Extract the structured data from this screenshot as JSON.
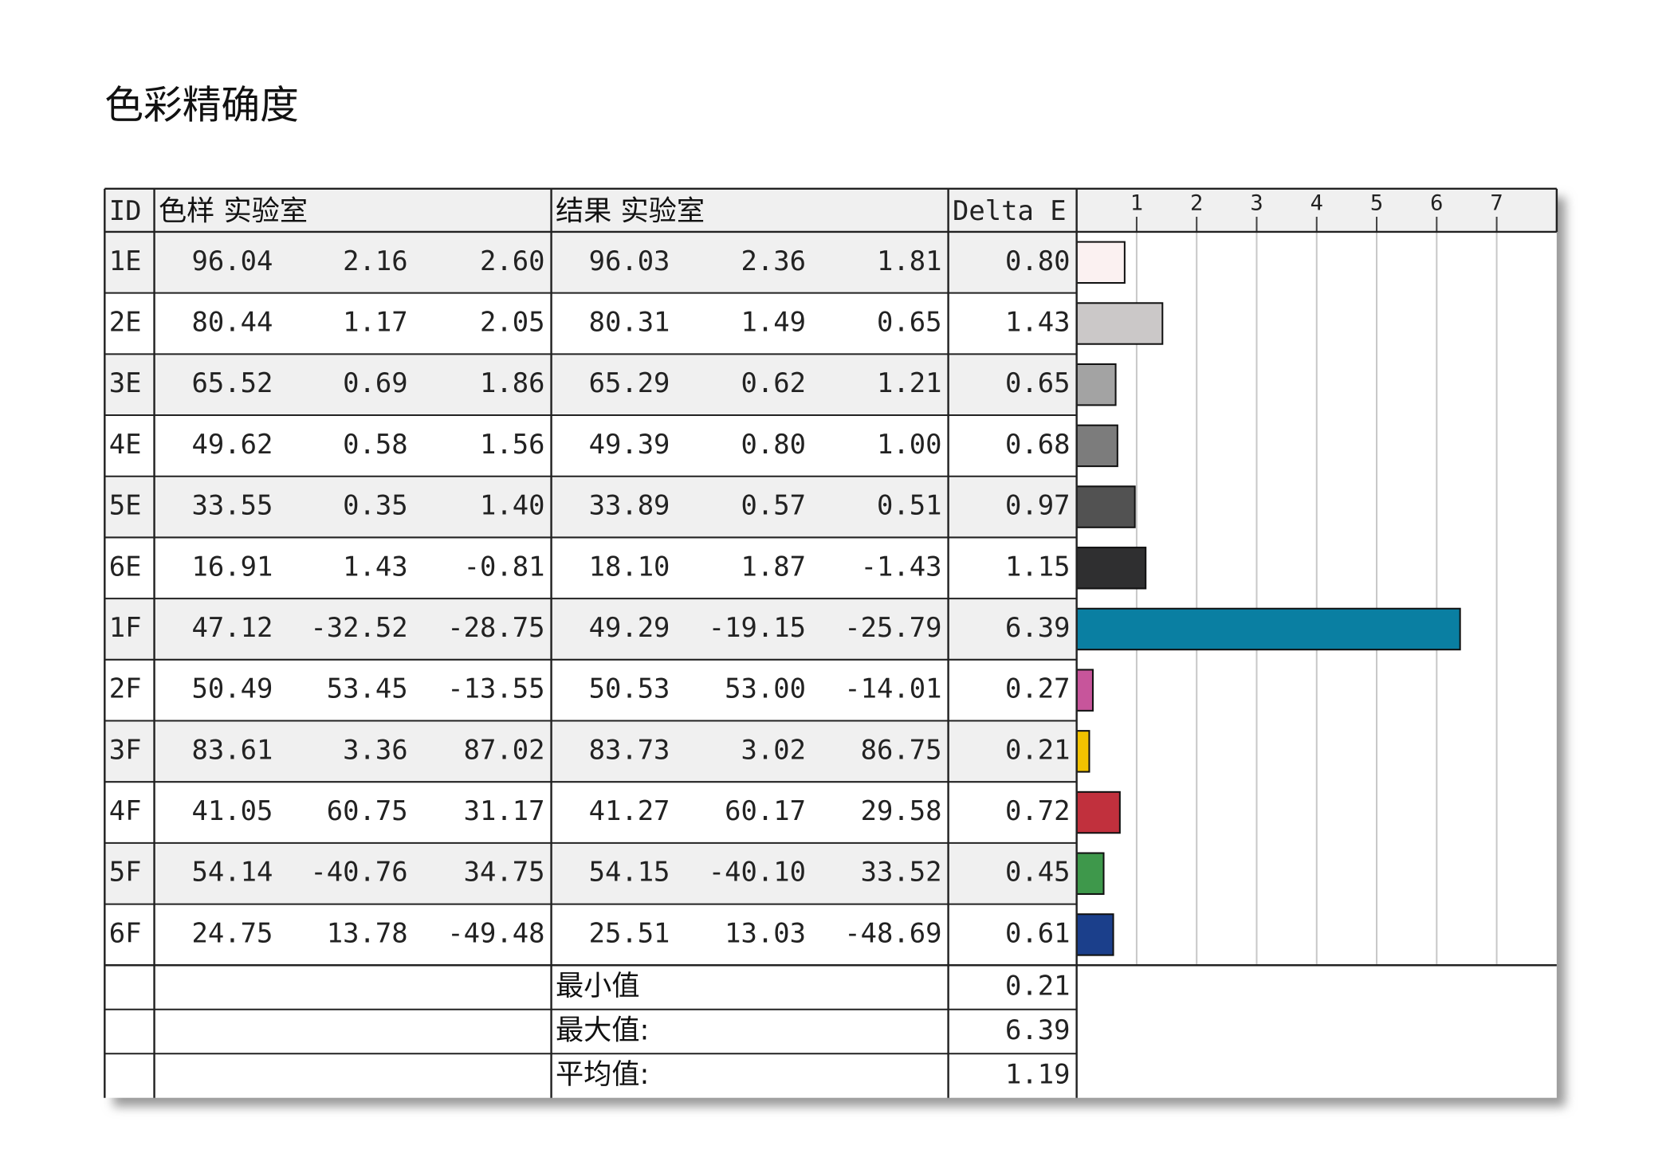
{
  "title": "色彩精确度",
  "table": {
    "header": [
      "ID",
      "色样 实验室",
      "结果 实验室",
      "Delta E"
    ],
    "rows": [
      {
        "id": "1E",
        "sample": [
          "96.04",
          "2.16",
          "2.60"
        ],
        "result": [
          "96.03",
          "2.36",
          "1.81"
        ],
        "delta_e": {
          "value": 0.8,
          "label": "0.80"
        },
        "color": "#fbf1f1"
      },
      {
        "id": "2E",
        "sample": [
          "80.44",
          "1.17",
          "2.05"
        ],
        "result": [
          "80.31",
          "1.49",
          "0.65"
        ],
        "delta_e": {
          "value": 1.43,
          "label": "1.43"
        },
        "color": "#cbc8c8"
      },
      {
        "id": "3E",
        "sample": [
          "65.52",
          "0.69",
          "1.86"
        ],
        "result": [
          "65.29",
          "0.62",
          "1.21"
        ],
        "delta_e": {
          "value": 0.65,
          "label": "0.65"
        },
        "color": "#a3a3a3"
      },
      {
        "id": "4E",
        "sample": [
          "49.62",
          "0.58",
          "1.56"
        ],
        "result": [
          "49.39",
          "0.80",
          "1.00"
        ],
        "delta_e": {
          "value": 0.68,
          "label": "0.68"
        },
        "color": "#7c7c7c"
      },
      {
        "id": "5E",
        "sample": [
          "33.55",
          "0.35",
          "1.40"
        ],
        "result": [
          "33.89",
          "0.57",
          "0.51"
        ],
        "delta_e": {
          "value": 0.97,
          "label": "0.97"
        },
        "color": "#525252"
      },
      {
        "id": "6E",
        "sample": [
          "16.91",
          "1.43",
          "-0.81"
        ],
        "result": [
          "18.10",
          "1.87",
          "-1.43"
        ],
        "delta_e": {
          "value": 1.15,
          "label": "1.15"
        },
        "color": "#2f2f30"
      },
      {
        "id": "1F",
        "sample": [
          "47.12",
          "-32.52",
          "-28.75"
        ],
        "result": [
          "49.29",
          "-19.15",
          "-25.79"
        ],
        "delta_e": {
          "value": 6.39,
          "label": "6.39"
        },
        "color": "#0a7fa2"
      },
      {
        "id": "2F",
        "sample": [
          "50.49",
          "53.45",
          "-13.55"
        ],
        "result": [
          "50.53",
          "53.00",
          "-14.01"
        ],
        "delta_e": {
          "value": 0.27,
          "label": "0.27"
        },
        "color": "#c7559b"
      },
      {
        "id": "3F",
        "sample": [
          "83.61",
          "3.36",
          "87.02"
        ],
        "result": [
          "83.73",
          "3.02",
          "86.75"
        ],
        "delta_e": {
          "value": 0.21,
          "label": "0.21"
        },
        "color": "#f2c200"
      },
      {
        "id": "4F",
        "sample": [
          "41.05",
          "60.75",
          "31.17"
        ],
        "result": [
          "41.27",
          "60.17",
          "29.58"
        ],
        "delta_e": {
          "value": 0.72,
          "label": "0.72"
        },
        "color": "#c1303d"
      },
      {
        "id": "5F",
        "sample": [
          "54.14",
          "-40.76",
          "34.75"
        ],
        "result": [
          "54.15",
          "-40.10",
          "33.52"
        ],
        "delta_e": {
          "value": 0.45,
          "label": "0.45"
        },
        "color": "#3e984b"
      },
      {
        "id": "6F",
        "sample": [
          "24.75",
          "13.78",
          "-49.48"
        ],
        "result": [
          "25.51",
          "13.03",
          "-48.69"
        ],
        "delta_e": {
          "value": 0.61,
          "label": "0.61"
        },
        "color": "#1b3f8b"
      }
    ],
    "summary": [
      {
        "label": "最小值",
        "value": "0.21"
      },
      {
        "label": "最大值:",
        "value": "6.39"
      },
      {
        "label": "平均值:",
        "value": "1.19"
      }
    ],
    "xlim": [
      0,
      8
    ],
    "xticks": [
      1,
      2,
      3,
      4,
      5,
      6,
      7
    ]
  }
}
